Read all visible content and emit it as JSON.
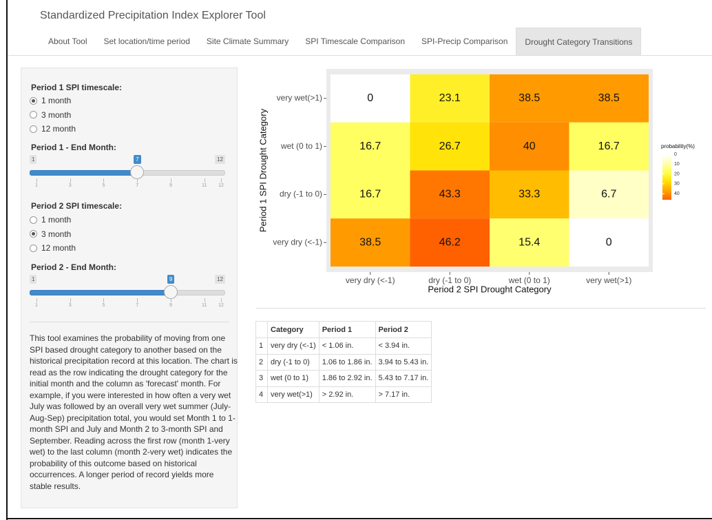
{
  "header": {
    "title": "Standardized Precipitation Index Explorer Tool"
  },
  "tabs": [
    {
      "label": "About Tool",
      "active": false
    },
    {
      "label": "Set location/time period",
      "active": false
    },
    {
      "label": "Site Climate Summary",
      "active": false
    },
    {
      "label": "SPI Timescale Comparison",
      "active": false
    },
    {
      "label": "SPI-Precip Comparison",
      "active": false
    },
    {
      "label": "Drought Category Transitions",
      "active": true
    }
  ],
  "sidebar": {
    "period1_timescale": {
      "label": "Period 1 SPI timescale:",
      "options": [
        {
          "label": "1 month",
          "checked": true
        },
        {
          "label": "3 month",
          "checked": false
        },
        {
          "label": "12 month",
          "checked": false
        }
      ]
    },
    "period1_end": {
      "label": "Period 1 - End Month:",
      "min": 1,
      "max": 12,
      "value": 7,
      "ticks": [
        1,
        3,
        5,
        7,
        9,
        11,
        12
      ]
    },
    "period2_timescale": {
      "label": "Period 2 SPI timescale:",
      "options": [
        {
          "label": "1 month",
          "checked": false
        },
        {
          "label": "3 month",
          "checked": true
        },
        {
          "label": "12 month",
          "checked": false
        }
      ]
    },
    "period2_end": {
      "label": "Period 2 - End Month:",
      "min": 1,
      "max": 12,
      "value": 9,
      "ticks": [
        1,
        3,
        5,
        7,
        9,
        11,
        12
      ]
    },
    "description": "This tool examines the probability of moving from one SPI based drought category to another based on the historical precipitation record at this location. The chart is read as the row indicating the drought category for the initial month and the column as 'forecast' month. For example, if you were interested in how often a very wet July was followed by an overall very wet summer (July-Aug-Sep) precipitation total, you would set Month 1 to 1-month SPI and July and Month 2 to 3-month SPI and September. Reading across the first row (month 1-very wet) to the last column (month 2-very wet) indicates the probability of this outcome based on historical occurrences. A longer period of record yields more stable results."
  },
  "chart_data": {
    "type": "heatmap",
    "x_label": "Period 2 SPI Drought Category",
    "y_label": "Period 1 SPI Drought Category",
    "x_categories": [
      "very dry (<-1)",
      "dry (-1 to 0)",
      "wet (0 to 1)",
      "very wet(>1)"
    ],
    "y_categories": [
      "very wet(>1)",
      "wet (0 to 1)",
      "dry (-1 to 0)",
      "very dry (<-1)"
    ],
    "values": [
      [
        0,
        23.1,
        38.5,
        38.5
      ],
      [
        16.7,
        26.7,
        40,
        16.7
      ],
      [
        16.7,
        43.3,
        33.3,
        6.7
      ],
      [
        38.5,
        46.2,
        15.4,
        0
      ]
    ],
    "colors": [
      "#ffffff",
      "#ffffb0",
      "#ffff50",
      "#ffdf00",
      "#ffa500",
      "#ff6000"
    ],
    "legend_title": "probability(%)",
    "legend_ticks": [
      0,
      10,
      20,
      30,
      40
    ]
  },
  "table": {
    "columns": [
      "Category",
      "Period 1",
      "Period 2"
    ],
    "rows": [
      [
        1,
        "very dry (<-1)",
        "< 1.06 in.",
        "< 3.94 in."
      ],
      [
        2,
        "dry (-1 to 0)",
        "1.06 to 1.86 in.",
        "3.94 to 5.43 in."
      ],
      [
        3,
        "wet (0 to 1)",
        "1.86 to 2.92 in.",
        "5.43 to 7.17 in."
      ],
      [
        4,
        "very wet(>1)",
        "> 2.92 in.",
        "> 7.17 in."
      ]
    ]
  }
}
